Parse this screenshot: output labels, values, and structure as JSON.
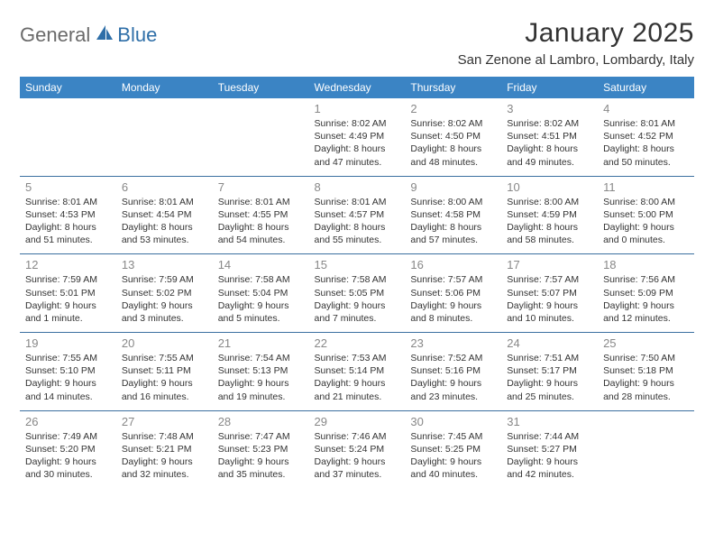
{
  "brand": {
    "part1": "General",
    "part2": "Blue"
  },
  "title": "January 2025",
  "location": "San Zenone al Lambro, Lombardy, Italy",
  "header_bg": "#3b84c4",
  "header_fg": "#ffffff",
  "rule_color": "#3b6fa0",
  "daynum_color": "#888888",
  "text_color": "#333333",
  "columns": [
    "Sunday",
    "Monday",
    "Tuesday",
    "Wednesday",
    "Thursday",
    "Friday",
    "Saturday"
  ],
  "weeks": [
    [
      null,
      null,
      null,
      {
        "d": "1",
        "sr": "8:02 AM",
        "ss": "4:49 PM",
        "dl": "8 hours and 47 minutes."
      },
      {
        "d": "2",
        "sr": "8:02 AM",
        "ss": "4:50 PM",
        "dl": "8 hours and 48 minutes."
      },
      {
        "d": "3",
        "sr": "8:02 AM",
        "ss": "4:51 PM",
        "dl": "8 hours and 49 minutes."
      },
      {
        "d": "4",
        "sr": "8:01 AM",
        "ss": "4:52 PM",
        "dl": "8 hours and 50 minutes."
      }
    ],
    [
      {
        "d": "5",
        "sr": "8:01 AM",
        "ss": "4:53 PM",
        "dl": "8 hours and 51 minutes."
      },
      {
        "d": "6",
        "sr": "8:01 AM",
        "ss": "4:54 PM",
        "dl": "8 hours and 53 minutes."
      },
      {
        "d": "7",
        "sr": "8:01 AM",
        "ss": "4:55 PM",
        "dl": "8 hours and 54 minutes."
      },
      {
        "d": "8",
        "sr": "8:01 AM",
        "ss": "4:57 PM",
        "dl": "8 hours and 55 minutes."
      },
      {
        "d": "9",
        "sr": "8:00 AM",
        "ss": "4:58 PM",
        "dl": "8 hours and 57 minutes."
      },
      {
        "d": "10",
        "sr": "8:00 AM",
        "ss": "4:59 PM",
        "dl": "8 hours and 58 minutes."
      },
      {
        "d": "11",
        "sr": "8:00 AM",
        "ss": "5:00 PM",
        "dl": "9 hours and 0 minutes."
      }
    ],
    [
      {
        "d": "12",
        "sr": "7:59 AM",
        "ss": "5:01 PM",
        "dl": "9 hours and 1 minute."
      },
      {
        "d": "13",
        "sr": "7:59 AM",
        "ss": "5:02 PM",
        "dl": "9 hours and 3 minutes."
      },
      {
        "d": "14",
        "sr": "7:58 AM",
        "ss": "5:04 PM",
        "dl": "9 hours and 5 minutes."
      },
      {
        "d": "15",
        "sr": "7:58 AM",
        "ss": "5:05 PM",
        "dl": "9 hours and 7 minutes."
      },
      {
        "d": "16",
        "sr": "7:57 AM",
        "ss": "5:06 PM",
        "dl": "9 hours and 8 minutes."
      },
      {
        "d": "17",
        "sr": "7:57 AM",
        "ss": "5:07 PM",
        "dl": "9 hours and 10 minutes."
      },
      {
        "d": "18",
        "sr": "7:56 AM",
        "ss": "5:09 PM",
        "dl": "9 hours and 12 minutes."
      }
    ],
    [
      {
        "d": "19",
        "sr": "7:55 AM",
        "ss": "5:10 PM",
        "dl": "9 hours and 14 minutes."
      },
      {
        "d": "20",
        "sr": "7:55 AM",
        "ss": "5:11 PM",
        "dl": "9 hours and 16 minutes."
      },
      {
        "d": "21",
        "sr": "7:54 AM",
        "ss": "5:13 PM",
        "dl": "9 hours and 19 minutes."
      },
      {
        "d": "22",
        "sr": "7:53 AM",
        "ss": "5:14 PM",
        "dl": "9 hours and 21 minutes."
      },
      {
        "d": "23",
        "sr": "7:52 AM",
        "ss": "5:16 PM",
        "dl": "9 hours and 23 minutes."
      },
      {
        "d": "24",
        "sr": "7:51 AM",
        "ss": "5:17 PM",
        "dl": "9 hours and 25 minutes."
      },
      {
        "d": "25",
        "sr": "7:50 AM",
        "ss": "5:18 PM",
        "dl": "9 hours and 28 minutes."
      }
    ],
    [
      {
        "d": "26",
        "sr": "7:49 AM",
        "ss": "5:20 PM",
        "dl": "9 hours and 30 minutes."
      },
      {
        "d": "27",
        "sr": "7:48 AM",
        "ss": "5:21 PM",
        "dl": "9 hours and 32 minutes."
      },
      {
        "d": "28",
        "sr": "7:47 AM",
        "ss": "5:23 PM",
        "dl": "9 hours and 35 minutes."
      },
      {
        "d": "29",
        "sr": "7:46 AM",
        "ss": "5:24 PM",
        "dl": "9 hours and 37 minutes."
      },
      {
        "d": "30",
        "sr": "7:45 AM",
        "ss": "5:25 PM",
        "dl": "9 hours and 40 minutes."
      },
      {
        "d": "31",
        "sr": "7:44 AM",
        "ss": "5:27 PM",
        "dl": "9 hours and 42 minutes."
      },
      null
    ]
  ],
  "labels": {
    "sunrise": "Sunrise:",
    "sunset": "Sunset:",
    "daylight": "Daylight:"
  }
}
